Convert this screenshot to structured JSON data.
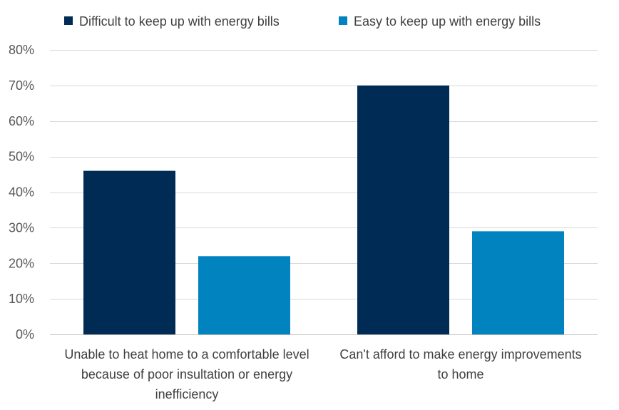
{
  "chart_data": {
    "type": "bar",
    "title": "",
    "xlabel": "",
    "ylabel": "",
    "categories": [
      "Unable to heat home to a comfortable level because of poor insultation or energy inefficiency",
      "Can't afford to make energy improvements to home"
    ],
    "category_lines": [
      [
        "Unable to heat home to a comfortable level",
        "because of poor insultation or energy",
        "inefficiency"
      ],
      [
        "Can't afford to make energy improvements",
        "to home"
      ]
    ],
    "series": [
      {
        "name": "Difficult to keep up with energy bills",
        "values": [
          0.46,
          0.7
        ],
        "color": "#002B54"
      },
      {
        "name": "Easy to keep up with energy bills",
        "values": [
          0.22,
          0.29
        ],
        "color": "#0083BE"
      }
    ],
    "ylim": [
      0,
      0.8
    ],
    "yticks": [
      0,
      0.1,
      0.2,
      0.3,
      0.4,
      0.5,
      0.6,
      0.7,
      0.8
    ],
    "ytick_labels": [
      "0%",
      "10%",
      "20%",
      "30%",
      "40%",
      "50%",
      "60%",
      "70%",
      "80%"
    ],
    "grid": true,
    "grid_color": "#D9D9D9",
    "legend_position": "top"
  }
}
